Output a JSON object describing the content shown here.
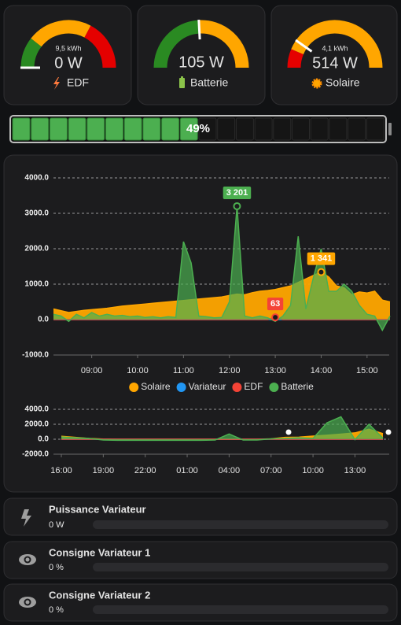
{
  "gauges": [
    {
      "subtitle": "9,5 kWh",
      "value": "0 W",
      "name": "EDF"
    },
    {
      "value": "105 W",
      "name": "Batterie"
    },
    {
      "subtitle": "4,1 kWh",
      "value": "514 W",
      "name": "Solaire"
    }
  ],
  "battery": {
    "value": 49,
    "value_label": "49%"
  },
  "chart_data": [
    {
      "type": "area",
      "legend": "bottom",
      "grid": true,
      "categories": [
        null,
        null,
        null,
        null,
        null,
        "09:00",
        null,
        null,
        null,
        null,
        null,
        "10:00",
        null,
        null,
        null,
        null,
        null,
        "11:00",
        null,
        null,
        null,
        null,
        null,
        "12:00",
        null,
        null,
        null,
        null,
        null,
        "13:00",
        null,
        null,
        null,
        null,
        null,
        "14:00",
        null,
        null,
        null,
        null,
        null,
        "15:00",
        null,
        null,
        null
      ],
      "ylim": [
        -1000,
        4400
      ],
      "yticks": [
        {
          "value": -1000,
          "label": "-1000.0"
        },
        {
          "value": 0,
          "label": "0.0"
        },
        {
          "value": 1000,
          "label": "1000.0"
        },
        {
          "value": 2000,
          "label": "2000.0"
        },
        {
          "value": 3000,
          "label": "3000.0"
        },
        {
          "value": 4000,
          "label": "4000.0"
        }
      ],
      "series": [
        {
          "name": "Solaire",
          "color": "#ffa600",
          "values": [
            300,
            250,
            200,
            230,
            260,
            280,
            300,
            320,
            350,
            380,
            400,
            420,
            440,
            460,
            480,
            500,
            520,
            540,
            560,
            580,
            600,
            620,
            640,
            680,
            720,
            700,
            760,
            800,
            820,
            850,
            900,
            950,
            1050,
            1150,
            1250,
            1341,
            1200,
            950,
            900,
            700,
            780,
            750,
            800,
            550,
            500
          ],
          "value_labels": [
            null,
            null,
            null,
            null,
            null,
            null,
            null,
            null,
            null,
            null,
            null,
            null,
            null,
            null,
            null,
            null,
            null,
            null,
            null,
            null,
            null,
            null,
            null,
            null,
            null,
            null,
            null,
            null,
            null,
            null,
            null,
            null,
            null,
            null,
            null,
            "1 341",
            null,
            null,
            null,
            null,
            null,
            null,
            null,
            null,
            null
          ]
        },
        {
          "name": "Variateur",
          "color": "#2196f3",
          "values": [
            0,
            0,
            0,
            0,
            0,
            0,
            0,
            0,
            0,
            0,
            0,
            0,
            0,
            0,
            0,
            0,
            0,
            0,
            0,
            0,
            0,
            0,
            0,
            0,
            0,
            0,
            0,
            0,
            0,
            0,
            0,
            0,
            0,
            0,
            0,
            0,
            0,
            0,
            0,
            0,
            0,
            0,
            0,
            0,
            0
          ]
        },
        {
          "name": "EDF",
          "color": "#f44336",
          "values": [
            0,
            0,
            0,
            0,
            0,
            0,
            0,
            0,
            0,
            0,
            0,
            0,
            0,
            0,
            0,
            0,
            0,
            0,
            0,
            0,
            0,
            0,
            0,
            0,
            0,
            0,
            0,
            0,
            0,
            63,
            0,
            0,
            0,
            0,
            0,
            0,
            0,
            0,
            0,
            0,
            0,
            0,
            0,
            0,
            0
          ],
          "value_labels": [
            null,
            null,
            null,
            null,
            null,
            null,
            null,
            null,
            null,
            null,
            null,
            null,
            null,
            null,
            null,
            null,
            null,
            null,
            null,
            null,
            null,
            null,
            null,
            null,
            null,
            null,
            null,
            null,
            null,
            "63",
            null,
            null,
            null,
            null,
            null,
            null,
            null,
            null,
            null,
            null,
            null,
            null,
            null,
            null,
            null
          ]
        },
        {
          "name": "Batterie",
          "color": "#4caf50",
          "values": [
            150,
            100,
            -50,
            150,
            50,
            200,
            100,
            150,
            100,
            120,
            80,
            100,
            60,
            80,
            50,
            80,
            60,
            2200,
            1600,
            100,
            80,
            50,
            60,
            500,
            3201,
            100,
            50,
            100,
            50,
            -50,
            100,
            400,
            2350,
            300,
            1200,
            2000,
            800,
            800,
            1000,
            800,
            400,
            150,
            100,
            -300,
            100
          ],
          "value_labels": [
            null,
            null,
            null,
            null,
            null,
            null,
            null,
            null,
            null,
            null,
            null,
            null,
            null,
            null,
            null,
            null,
            null,
            null,
            null,
            null,
            null,
            null,
            null,
            null,
            "3 201",
            null,
            null,
            null,
            null,
            null,
            null,
            null,
            null,
            null,
            null,
            null,
            null,
            null,
            null,
            null,
            null,
            null,
            null,
            null,
            null
          ]
        }
      ]
    },
    {
      "type": "area",
      "grid": true,
      "categories": [
        "16:00",
        null,
        null,
        "19:00",
        null,
        null,
        "22:00",
        null,
        null,
        "01:00",
        null,
        null,
        "04:00",
        null,
        null,
        "07:00",
        null,
        null,
        "10:00",
        null,
        null,
        "13:00",
        null,
        null
      ],
      "ylim": [
        -2000,
        4000
      ],
      "yticks": [
        {
          "value": -2000,
          "label": "-2000.0"
        },
        {
          "value": 0,
          "label": "0.0"
        },
        {
          "value": 2000,
          "label": "2000.0"
        },
        {
          "value": 4000,
          "label": "4000.0"
        }
      ],
      "series": [
        {
          "color": "#ffa600",
          "values": [
            400,
            250,
            100,
            20,
            0,
            0,
            0,
            0,
            0,
            0,
            0,
            0,
            0,
            0,
            0,
            50,
            250,
            280,
            420,
            540,
            680,
            850,
            1341,
            750
          ]
        },
        {
          "color": "#2196f3",
          "values": [
            0,
            0,
            0,
            0,
            0,
            0,
            0,
            0,
            0,
            0,
            0,
            0,
            0,
            0,
            0,
            0,
            0,
            0,
            0,
            0,
            0,
            0,
            0,
            0
          ]
        },
        {
          "color": "#f44336",
          "values": [
            0,
            0,
            0,
            0,
            0,
            0,
            0,
            0,
            0,
            0,
            0,
            0,
            0,
            0,
            0,
            0,
            0,
            0,
            0,
            0,
            0,
            0,
            0,
            0
          ]
        },
        {
          "color": "#4caf50",
          "values": [
            300,
            200,
            100,
            -100,
            -150,
            -150,
            -150,
            -150,
            -150,
            -150,
            -150,
            -100,
            700,
            -100,
            -100,
            50,
            100,
            200,
            100,
            2200,
            3000,
            -50,
            2000,
            150
          ]
        }
      ]
    }
  ],
  "rows": [
    {
      "title": "Puissance Variateur",
      "value": "0 W"
    },
    {
      "title": "Consigne Variateur 1",
      "value": "0 %"
    },
    {
      "title": "Consigne Variateur 2",
      "value": "0 %"
    }
  ]
}
